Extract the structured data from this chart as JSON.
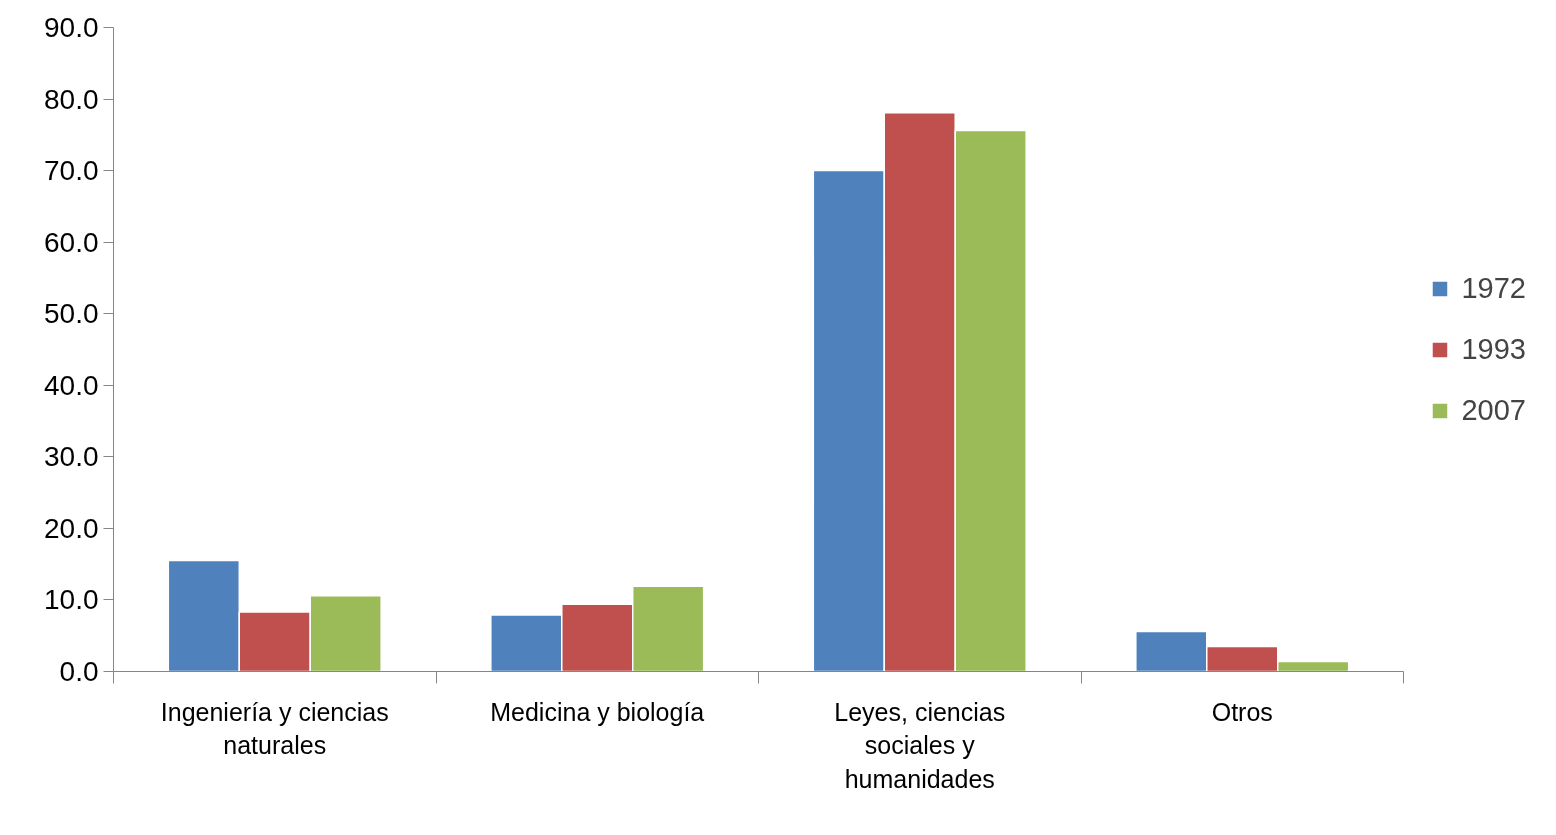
{
  "chart_data": {
    "type": "bar",
    "categories": [
      "Ingeniería y ciencias naturales",
      "Medicina y biología",
      "Leyes, ciencias sociales y humanidades",
      "Otros"
    ],
    "series": [
      {
        "name": "1972",
        "color": "#4f81bd",
        "values": [
          15.5,
          7.9,
          70.0,
          5.6
        ]
      },
      {
        "name": "1993",
        "color": "#c0504d",
        "values": [
          8.3,
          9.4,
          78.1,
          3.5
        ]
      },
      {
        "name": "2007",
        "color": "#9bbb59",
        "values": [
          10.6,
          11.9,
          75.6,
          1.4
        ]
      }
    ],
    "ylim": [
      0,
      90
    ],
    "yticks": [
      {
        "value": 0,
        "label": "0.0"
      },
      {
        "value": 10,
        "label": "10.0"
      },
      {
        "value": 20,
        "label": "20.0"
      },
      {
        "value": 30,
        "label": "30.0"
      },
      {
        "value": 40,
        "label": "40.0"
      },
      {
        "value": 50,
        "label": "50.0"
      },
      {
        "value": 60,
        "label": "60.0"
      },
      {
        "value": 70,
        "label": "70.0"
      },
      {
        "value": 80,
        "label": "80.0"
      },
      {
        "value": 90,
        "label": "90.0"
      }
    ],
    "grid": false,
    "legend": "right"
  }
}
